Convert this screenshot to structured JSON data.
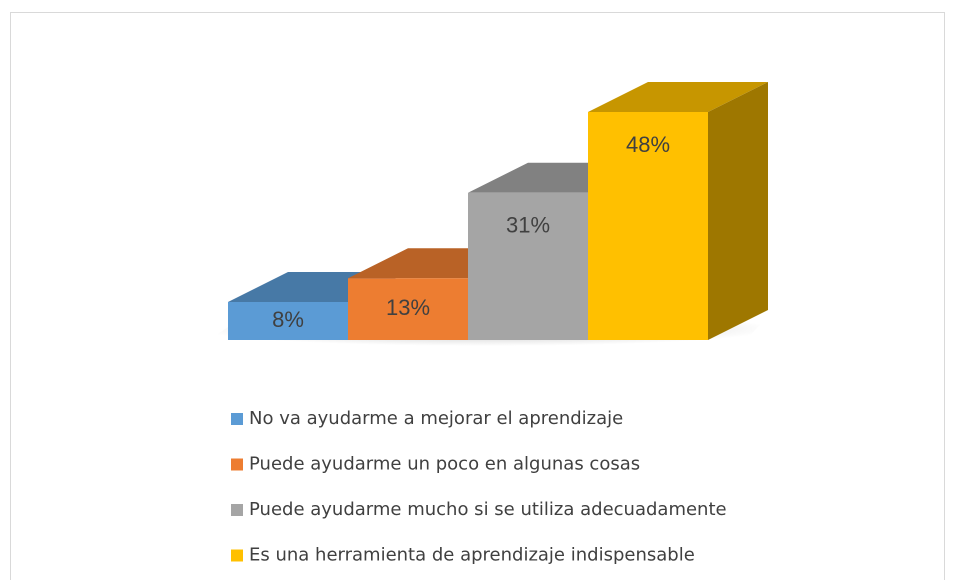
{
  "chart_data": {
    "type": "bar3d",
    "series": [
      {
        "name": "No va ayudarme a mejorar el aprendizaje",
        "color": "#5b9bd5",
        "values": [
          8
        ],
        "value_labels": [
          "8%"
        ]
      },
      {
        "name": "Puede ayudarme un poco en algunas cosas",
        "color": "#ed7d31",
        "values": [
          13
        ],
        "value_labels": [
          "13%"
        ]
      },
      {
        "name": "Puede ayudarme mucho si se utiliza adecuadamente",
        "color": "#a5a5a5",
        "values": [
          31
        ],
        "value_labels": [
          "31%"
        ]
      },
      {
        "name": "Es una herramienta de aprendizaje indispensable",
        "color": "#ffc000",
        "values": [
          48
        ],
        "value_labels": [
          "48%"
        ]
      }
    ]
  }
}
